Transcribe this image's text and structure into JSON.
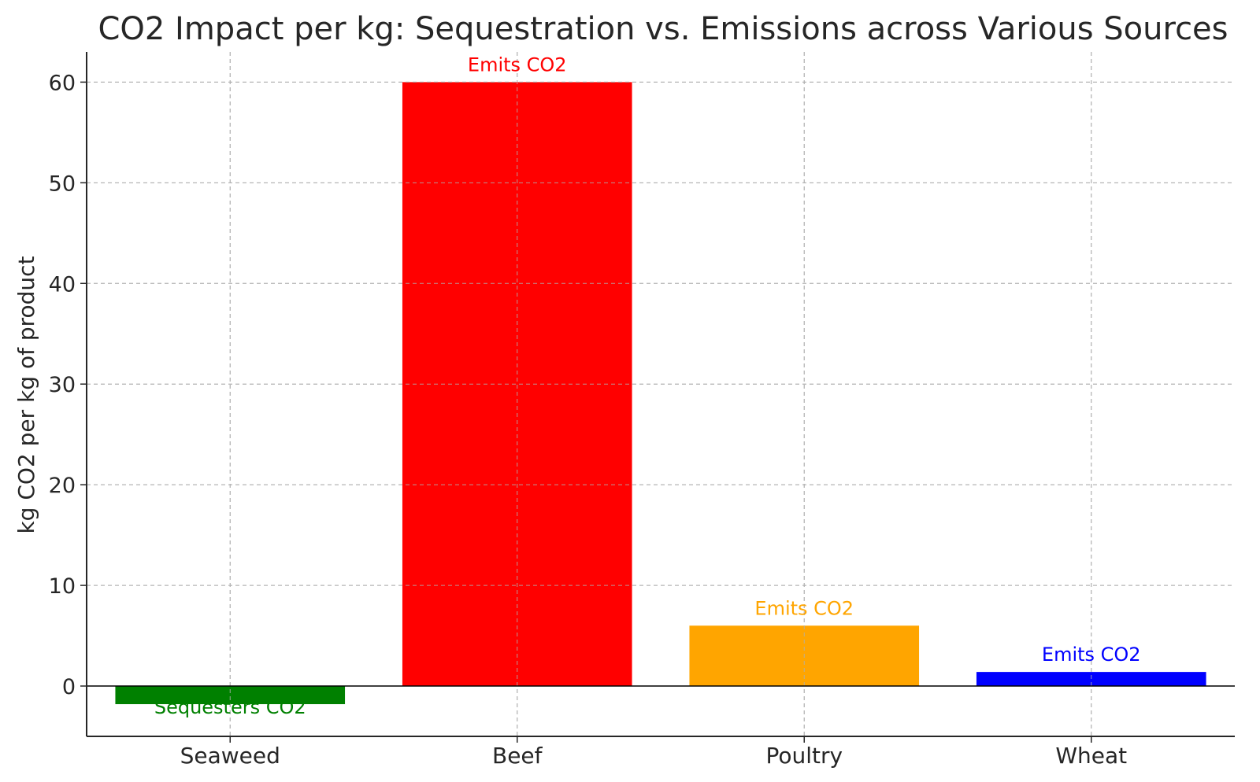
{
  "chart_data": {
    "type": "bar",
    "title": "CO2 Impact per kg: Sequestration vs. Emissions across Various Sources",
    "xlabel": "",
    "ylabel": "kg CO2 per kg of product",
    "categories": [
      "Seaweed",
      "Beef",
      "Poultry",
      "Wheat"
    ],
    "values": [
      -1.8,
      60,
      6,
      1.4
    ],
    "colors": [
      "#008000",
      "#ff0000",
      "#ffa500",
      "#0000ff"
    ],
    "annotations": [
      "Sequesters CO2",
      "Emits CO2",
      "Emits CO2",
      "Emits CO2"
    ],
    "ylim": [
      -5,
      63
    ],
    "yticks": [
      0,
      10,
      20,
      30,
      40,
      50,
      60
    ],
    "grid": true,
    "zero_line": true
  }
}
